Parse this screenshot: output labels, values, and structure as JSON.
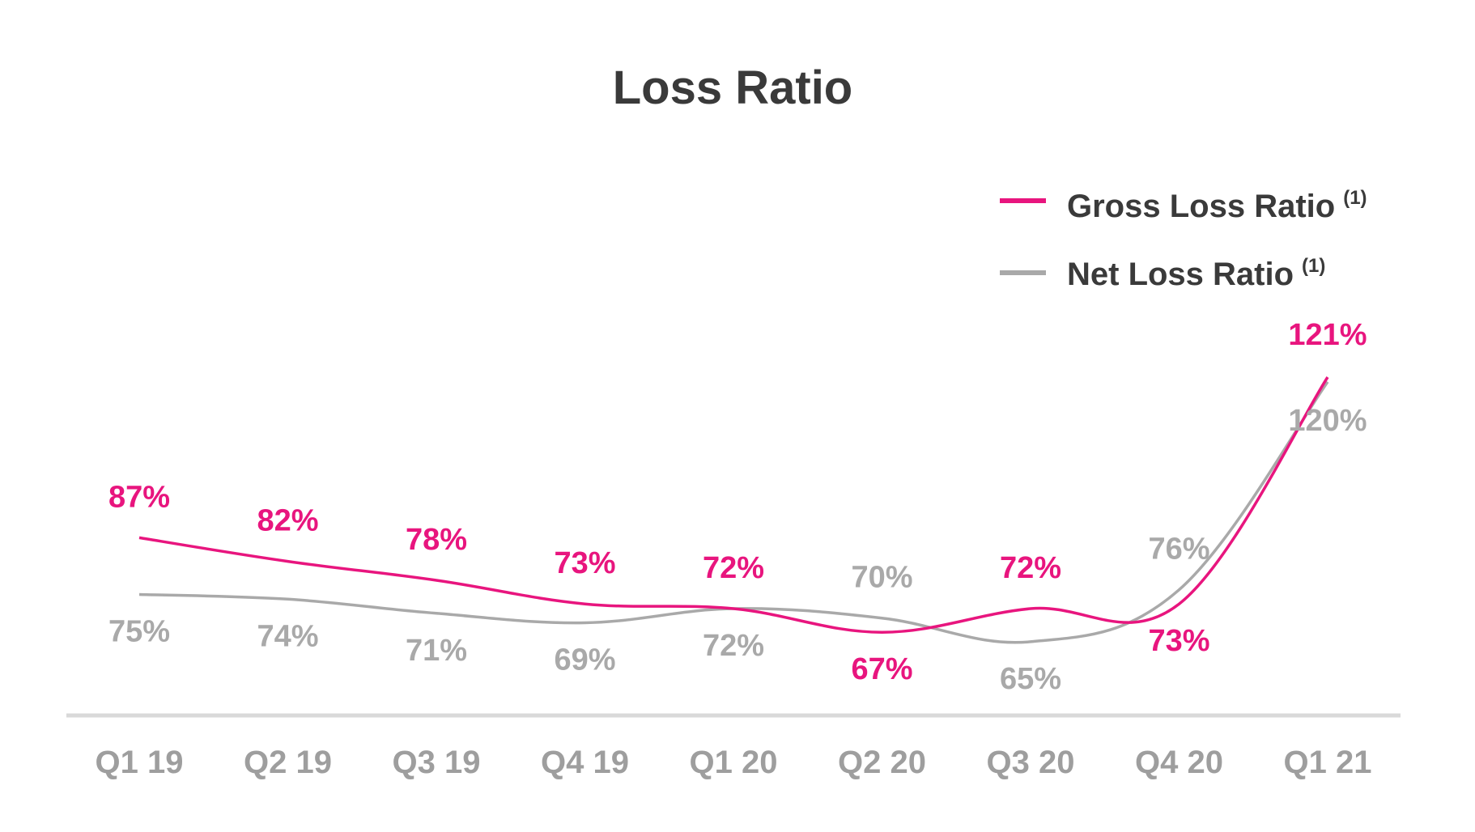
{
  "chart_data": {
    "type": "line",
    "title": "Loss Ratio",
    "xlabel": "",
    "ylabel": "",
    "categories": [
      "Q1 19",
      "Q2 19",
      "Q3 19",
      "Q4 19",
      "Q1 20",
      "Q2 20",
      "Q3 20",
      "Q4 20",
      "Q1 21"
    ],
    "ylim": [
      60,
      125
    ],
    "grid": false,
    "legend_position": "top-right",
    "series": [
      {
        "name": "Gross Loss Ratio",
        "footnote": "(1)",
        "color": "#e8157e",
        "values": [
          87,
          82,
          78,
          73,
          72,
          67,
          72,
          73,
          121
        ],
        "labels": [
          "87%",
          "82%",
          "78%",
          "73%",
          "72%",
          "67%",
          "72%",
          "73%",
          "121%"
        ]
      },
      {
        "name": "Net Loss Ratio",
        "footnote": "(1)",
        "color": "#a9a9a9",
        "values": [
          75,
          74,
          71,
          69,
          72,
          70,
          65,
          76,
          120
        ],
        "labels": [
          "75%",
          "74%",
          "71%",
          "69%",
          "72%",
          "70%",
          "65%",
          "76%",
          "120%"
        ]
      }
    ]
  }
}
